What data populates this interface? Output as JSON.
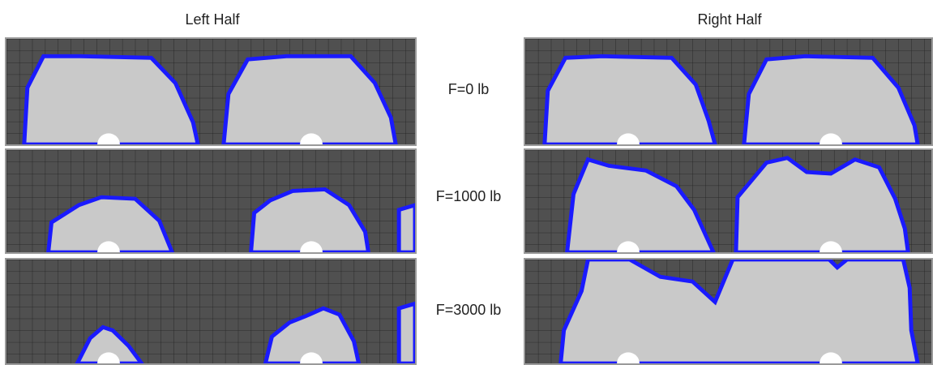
{
  "columns": {
    "left": "Left Half",
    "right": "Right Half"
  },
  "forces": [
    "F=0 lb",
    "F=1000 lb",
    "F=3000 lb"
  ],
  "colors": {
    "background_mesh": "#505050",
    "contact_region": "#c9c9c9",
    "boundary": "#1a1aff",
    "mesh_line": "#1a1a1a",
    "frame": "#9a9a9a"
  }
}
